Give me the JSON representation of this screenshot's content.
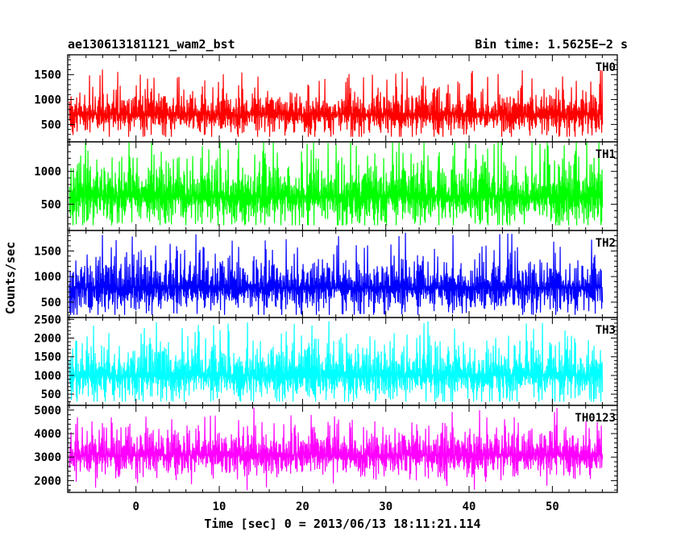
{
  "chart_data": {
    "type": "line",
    "title": "ae130613181121_wam2_bst",
    "bin_time_label": "Bin time: 1.5625E−2 s",
    "xlabel": "Time [sec] 0 = 2013/06/13 18:11:21.114",
    "ylabel": "Counts/sec",
    "xlim": [
      -8.2,
      57.8
    ],
    "x_ticks": [
      0,
      10,
      20,
      30,
      40,
      50
    ],
    "x_tick_labels": [
      "0",
      "10",
      "20",
      "30",
      "40",
      "50"
    ],
    "data_x_range": [
      -8,
      56
    ],
    "bin_time_sec": 0.015625,
    "grid": false,
    "panels": [
      {
        "name": "TH0",
        "color": "#ff0000",
        "ylim": [
          150,
          1900
        ],
        "y_ticks": [
          500,
          1000,
          1500
        ],
        "y_tick_labels": [
          "500",
          "1000",
          "1500"
        ],
        "mean": 700,
        "noise": 230,
        "min": 250,
        "max": 1850,
        "early_level": 600
      },
      {
        "name": "TH1",
        "color": "#00ff00",
        "ylim": [
          100,
          1450
        ],
        "y_ticks": [
          500,
          1000
        ],
        "y_tick_labels": [
          "500",
          "1000"
        ],
        "mean": 620,
        "noise": 260,
        "min": 180,
        "max": 1440,
        "early_level": 560
      },
      {
        "name": "TH2",
        "color": "#0000ff",
        "ylim": [
          200,
          1900
        ],
        "y_ticks": [
          500,
          1000,
          1500
        ],
        "y_tick_labels": [
          "500",
          "1000",
          "1500"
        ],
        "mean": 780,
        "noise": 270,
        "min": 250,
        "max": 1880,
        "early_level": 680
      },
      {
        "name": "TH3",
        "color": "#00ffff",
        "ylim": [
          200,
          2550
        ],
        "y_ticks": [
          500,
          1000,
          1500,
          2000,
          2500
        ],
        "y_tick_labels": [
          "500",
          "1000",
          "1500",
          "2000",
          "2500"
        ],
        "mean": 1000,
        "noise": 380,
        "min": 300,
        "max": 2450,
        "early_level": 900
      },
      {
        "name": "TH0123",
        "color": "#ff00ff",
        "ylim": [
          1500,
          5200
        ],
        "y_ticks": [
          2000,
          3000,
          4000,
          5000
        ],
        "y_tick_labels": [
          "2000",
          "3000",
          "4000",
          "5000"
        ],
        "mean": 3100,
        "noise": 520,
        "min": 1550,
        "max": 5150,
        "early_level": 2950
      }
    ]
  }
}
